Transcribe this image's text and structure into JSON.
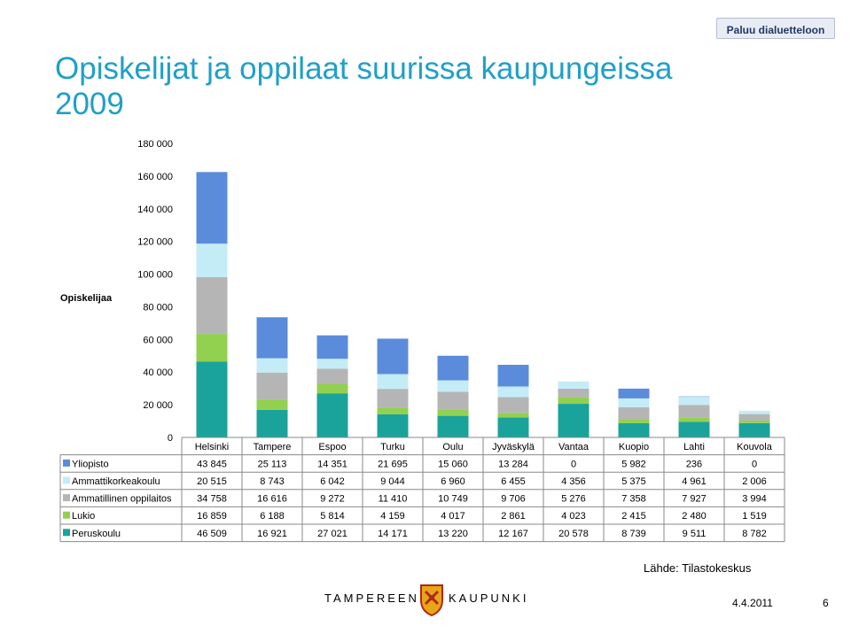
{
  "back_button": "Paluu dialuetteloon",
  "title_line1": "Opiskelijat ja oppilaat suurissa kaupungeissa",
  "title_line2": "2009",
  "source": "Lähde: Tilastokeskus",
  "logo": {
    "left": "TAMPEREEN",
    "right": "KAUPUNKI",
    "icon": "tampere-coat-of-arms-icon"
  },
  "date": "4.4.2011",
  "page_number": "6",
  "chart_data": {
    "type": "bar",
    "stacked": true,
    "ylabel": "Opiskelijaa",
    "ylim": [
      0,
      180000
    ],
    "yticks": [
      0,
      20000,
      40000,
      60000,
      80000,
      100000,
      120000,
      140000,
      160000,
      180000
    ],
    "ytick_labels": [
      "0",
      "20 000",
      "40 000",
      "60 000",
      "80 000",
      "100 000",
      "120 000",
      "140 000",
      "160 000",
      "180 000"
    ],
    "categories": [
      "Helsinki",
      "Tampere",
      "Espoo",
      "Turku",
      "Oulu",
      "Jyväskylä",
      "Vantaa",
      "Kuopio",
      "Lahti",
      "Kouvola"
    ],
    "series": [
      {
        "name": "Yliopisto",
        "color": "#5b8cdb",
        "values": [
          43845,
          25113,
          14351,
          21695,
          15060,
          13284,
          0,
          5982,
          236,
          0
        ],
        "labels": [
          "43 845",
          "25 113",
          "14 351",
          "21 695",
          "15 060",
          "13 284",
          "0",
          "5 982",
          "236",
          "0"
        ]
      },
      {
        "name": "Ammattikorkeakoulu",
        "color": "#c4ecf6",
        "values": [
          20515,
          8743,
          6042,
          9044,
          6960,
          6455,
          4356,
          5375,
          4961,
          2006
        ],
        "labels": [
          "20 515",
          "8 743",
          "6 042",
          "9 044",
          "6 960",
          "6 455",
          "4 356",
          "5 375",
          "4 961",
          "2 006"
        ]
      },
      {
        "name": "Ammatillinen oppilaitos",
        "color": "#b5b5b5",
        "values": [
          34758,
          16616,
          9272,
          11410,
          10749,
          9706,
          5276,
          7358,
          7927,
          3994
        ],
        "labels": [
          "34 758",
          "16 616",
          "9 272",
          "11 410",
          "10 749",
          "9 706",
          "5 276",
          "7 358",
          "7 927",
          "3 994"
        ]
      },
      {
        "name": "Lukio",
        "color": "#92d050",
        "values": [
          16859,
          6188,
          5814,
          4159,
          4017,
          2861,
          4023,
          2415,
          2480,
          1519
        ],
        "labels": [
          "16 859",
          "6 188",
          "5 814",
          "4 159",
          "4 017",
          "2 861",
          "4 023",
          "2 415",
          "2 480",
          "1 519"
        ]
      },
      {
        "name": "Peruskoulu",
        "color": "#1aa39b",
        "values": [
          46509,
          16921,
          27021,
          14171,
          13220,
          12167,
          20578,
          8739,
          9511,
          8782
        ],
        "labels": [
          "46 509",
          "16 921",
          "27 021",
          "14 171",
          "13 220",
          "12 167",
          "20 578",
          "8 739",
          "9 511",
          "8 782"
        ]
      }
    ]
  }
}
